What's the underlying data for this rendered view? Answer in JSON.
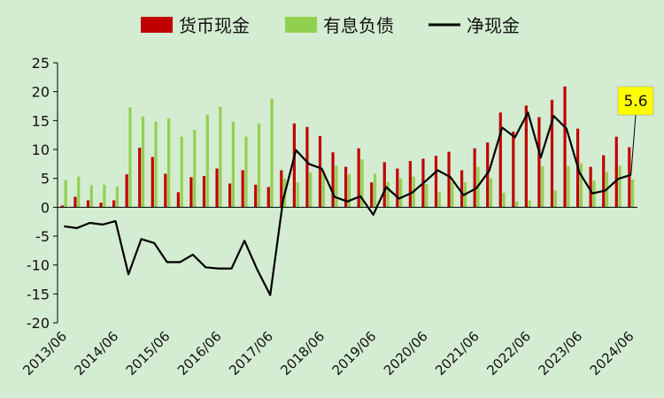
{
  "chart_data": {
    "type": "bar+line",
    "title": "",
    "xlabel": "",
    "ylabel": "",
    "ylim": [
      -20,
      25
    ],
    "yticks": [
      25,
      20,
      15,
      10,
      5,
      0,
      -5,
      -10,
      -15,
      -20
    ],
    "grid": false,
    "legend_position": "top",
    "legend": [
      {
        "label": "货币现金",
        "type": "bar",
        "color": "#c00000"
      },
      {
        "label": "有息负债",
        "type": "bar",
        "color": "#92d050"
      },
      {
        "label": "净现金",
        "type": "line",
        "color": "#000000"
      }
    ],
    "x_tick_labels": [
      "2013/06",
      "2014/06",
      "2015/06",
      "2016/06",
      "2017/06",
      "2018/06",
      "2019/06",
      "2020/06",
      "2021/06",
      "2022/06",
      "2023/06",
      "2024/06"
    ],
    "categories": [
      "2013/06",
      "2013/09",
      "2013/12",
      "2014/03",
      "2014/06",
      "2014/09",
      "2014/12",
      "2015/03",
      "2015/06",
      "2015/09",
      "2015/12",
      "2016/03",
      "2016/06",
      "2016/09",
      "2016/12",
      "2017/03",
      "2017/06",
      "2017/09",
      "2017/12",
      "2018/03",
      "2018/06",
      "2018/09",
      "2018/12",
      "2019/03",
      "2019/06",
      "2019/09",
      "2019/12",
      "2020/03",
      "2020/06",
      "2020/09",
      "2020/12",
      "2021/03",
      "2021/06",
      "2021/09",
      "2021/12",
      "2022/03",
      "2022/06",
      "2022/09",
      "2022/12",
      "2023/03",
      "2023/06",
      "2023/09",
      "2023/12",
      "2024/03",
      "2024/06"
    ],
    "series": [
      {
        "name": "货币现金",
        "type": "bar",
        "color": "#c00000",
        "values": [
          0.3,
          1.8,
          1.2,
          0.8,
          1.2,
          5.7,
          10.3,
          8.7,
          5.8,
          2.6,
          5.2,
          5.4,
          6.7,
          4.1,
          6.4,
          3.9,
          3.5,
          6.4,
          14.5,
          13.9,
          12.3,
          9.5,
          7.0,
          10.2,
          4.3,
          7.8,
          6.7,
          8.0,
          8.4,
          8.9,
          9.6,
          6.4,
          10.2,
          11.2,
          16.4,
          13.1,
          17.6,
          15.6,
          18.6,
          20.9,
          13.6,
          7.0,
          9.0,
          12.2,
          10.4
        ]
      },
      {
        "name": "有息负债",
        "type": "bar",
        "color": "#92d050",
        "values": [
          4.7,
          5.3,
          3.8,
          3.9,
          3.6,
          17.3,
          15.7,
          14.8,
          15.4,
          12.2,
          13.4,
          16.0,
          17.4,
          14.8,
          12.2,
          14.5,
          18.8,
          5.0,
          4.3,
          6.0,
          6.3,
          7.2,
          5.7,
          8.3,
          5.8,
          4.4,
          5.0,
          5.3,
          4.0,
          2.6,
          4.5,
          4.3,
          7.0,
          5.0,
          2.5,
          1.0,
          1.2,
          7.1,
          2.9,
          7.1,
          7.6,
          4.6,
          6.1,
          7.2,
          4.8
        ]
      },
      {
        "name": "净现金",
        "type": "line",
        "color": "#000000",
        "values": [
          -3.3,
          -3.6,
          -2.7,
          -3.0,
          -2.4,
          -11.6,
          -5.5,
          -6.2,
          -9.5,
          -9.5,
          -8.2,
          -10.4,
          -10.6,
          -10.6,
          -5.8,
          -10.8,
          -15.2,
          1.2,
          9.9,
          7.5,
          6.7,
          1.8,
          1.0,
          1.9,
          -1.3,
          3.5,
          1.5,
          2.5,
          4.4,
          6.4,
          5.2,
          2.1,
          3.3,
          6.3,
          13.8,
          12.1,
          16.4,
          8.6,
          15.8,
          13.6,
          6.0,
          2.4,
          2.9,
          4.9,
          5.6
        ]
      }
    ],
    "annotations": [
      {
        "text": "5.6",
        "series": "净现金",
        "category": "2024/06",
        "value": 5.6,
        "box_color": "#ffff00"
      }
    ]
  }
}
